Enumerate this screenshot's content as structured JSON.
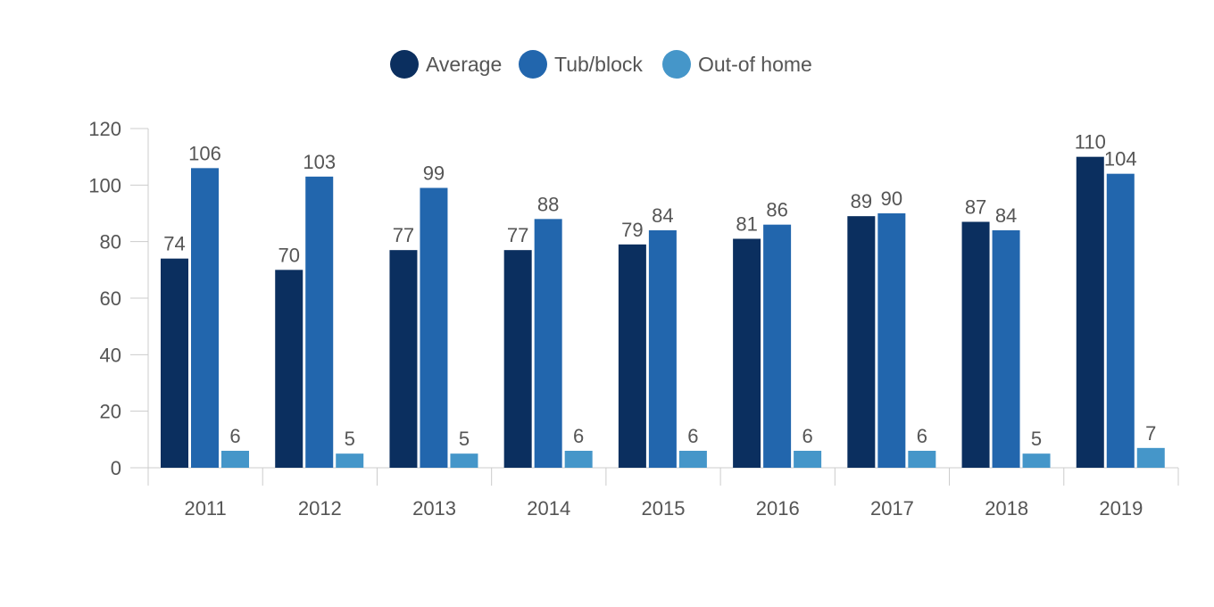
{
  "chart_data": {
    "type": "bar",
    "categories": [
      "2011",
      "2012",
      "2013",
      "2014",
      "2015",
      "2016",
      "2017",
      "2018",
      "2019"
    ],
    "series": [
      {
        "name": "Average",
        "color": "#0b2f5f",
        "values": [
          74,
          70,
          77,
          77,
          79,
          81,
          89,
          87,
          110
        ]
      },
      {
        "name": "Tub/block",
        "color": "#2266ad",
        "values": [
          106,
          103,
          99,
          88,
          84,
          86,
          90,
          84,
          104
        ]
      },
      {
        "name": "Out-of home",
        "color": "#4596c9",
        "values": [
          6,
          5,
          5,
          6,
          6,
          6,
          6,
          5,
          7
        ]
      }
    ],
    "ylim": [
      0,
      120
    ],
    "yticks": [
      0,
      20,
      40,
      60,
      80,
      100,
      120
    ],
    "legend_position": "top-center",
    "grid": false,
    "data_labels": true
  }
}
